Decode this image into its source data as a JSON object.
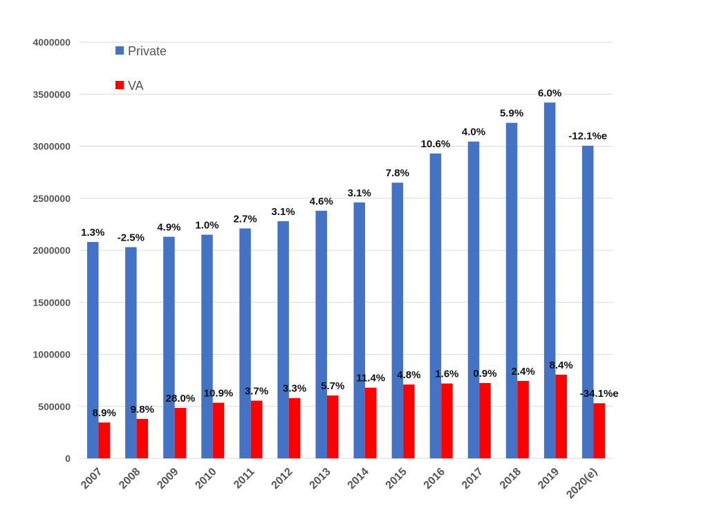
{
  "chart_data": {
    "type": "bar",
    "categories": [
      "2007",
      "2008",
      "2009",
      "2010",
      "2011",
      "2012",
      "2013",
      "2014",
      "2015",
      "2016",
      "2017",
      "2018",
      "2019",
      "2020(e)"
    ],
    "series": [
      {
        "name": "Private",
        "color": "#4472C4",
        "values": [
          2080000,
          2030000,
          2130000,
          2150000,
          2210000,
          2280000,
          2380000,
          2460000,
          2650000,
          2930000,
          3045000,
          3225000,
          3420000,
          3005000
        ],
        "labels": [
          "1.3%",
          "-2.5%",
          "4.9%",
          "1.0%",
          "2.7%",
          "3.1%",
          "4.6%",
          "3.1%",
          "7.8%",
          "10.6%",
          "4.0%",
          "5.9%",
          "6.0%",
          "-12.1%e"
        ]
      },
      {
        "name": "VA",
        "color": "#FF0000",
        "values": [
          345000,
          380000,
          485000,
          535000,
          555000,
          580000,
          605000,
          680000,
          710000,
          720000,
          725000,
          745000,
          805000,
          530000
        ],
        "labels": [
          "8.9%",
          "9.8%",
          "28.0%",
          "10.9%",
          "3.7%",
          "3.3%",
          "5.7%",
          "11.4%",
          "4.8%",
          "1.6%",
          "0.9%",
          "2.4%",
          "8.4%",
          "-34.1%e"
        ]
      }
    ],
    "ylim": [
      0,
      4000000
    ],
    "yticks": [
      "0",
      "500000",
      "1000000",
      "1500000",
      "2000000",
      "2500000",
      "3000000",
      "3500000",
      "4000000"
    ],
    "grid": true,
    "legend": "top-left"
  }
}
